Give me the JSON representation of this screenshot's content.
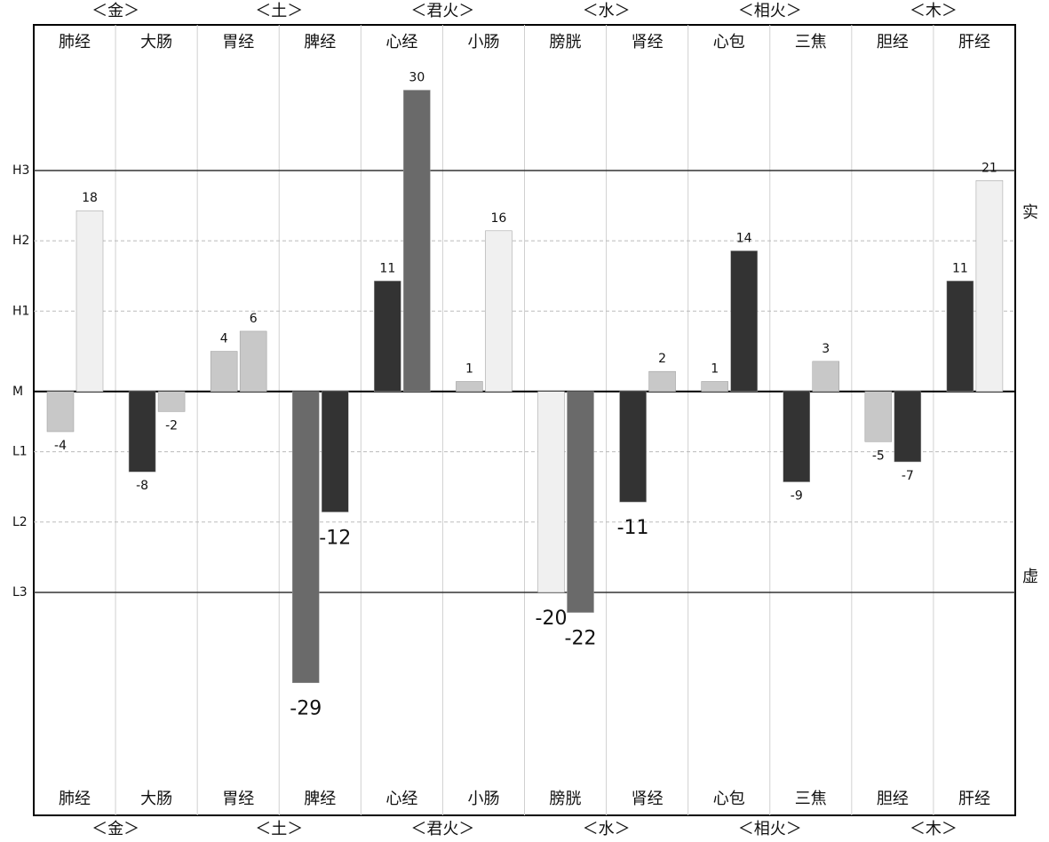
{
  "chart_data": {
    "type": "bar",
    "categories": [
      "肺经",
      "大肠",
      "胃经",
      "脾经",
      "心经",
      "小肠",
      "膀胱",
      "肾经",
      "心包",
      "三焦",
      "胆经",
      "肝经"
    ],
    "groups": [
      "＜金＞",
      "＜土＞",
      "＜君火＞",
      "＜水＞",
      "＜相火＞",
      "＜木＞"
    ],
    "side_labels": {
      "top": "实",
      "bottom": "虚"
    },
    "series": [
      {
        "values": [
          -4,
          -8,
          4,
          -29,
          11,
          1,
          -20,
          -11,
          1,
          -9,
          -5,
          11
        ],
        "colors": [
          "#c8c8c8",
          "#333333",
          "#c8c8c8",
          "#6a6a6a",
          "#333333",
          "#c8c8c8",
          "#f0f0f0",
          "#333333",
          "#c8c8c8",
          "#333333",
          "#c8c8c8",
          "#333333"
        ]
      },
      {
        "values": [
          18,
          -2,
          6,
          -12,
          30,
          16,
          -22,
          2,
          14,
          3,
          -7,
          21
        ],
        "colors": [
          "#f0f0f0",
          "#c8c8c8",
          "#c8c8c8",
          "#333333",
          "#6a6a6a",
          "#f0f0f0",
          "#6a6a6a",
          "#c8c8c8",
          "#333333",
          "#c8c8c8",
          "#333333",
          "#f0f0f0"
        ]
      }
    ],
    "ylim": [
      -42.2,
      36.5
    ],
    "yticks": [
      {
        "value": 22,
        "label": "H3"
      },
      {
        "value": 15,
        "label": "H2"
      },
      {
        "value": 8,
        "label": "H1"
      },
      {
        "value": 0,
        "label": "M"
      },
      {
        "value": -6,
        "label": "L1"
      },
      {
        "value": -13,
        "label": "L2"
      },
      {
        "value": -20,
        "label": "L3"
      }
    ],
    "grid": true
  }
}
